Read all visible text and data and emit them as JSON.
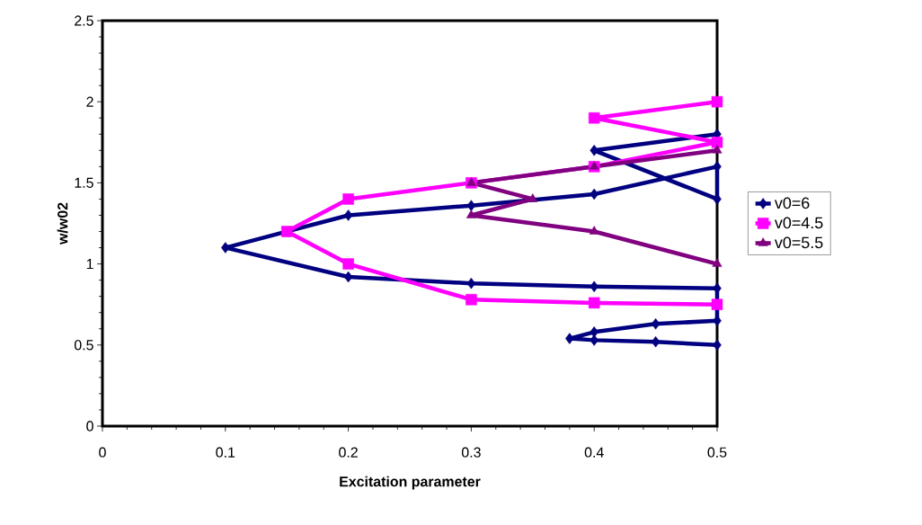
{
  "chart_data": {
    "type": "line",
    "xlabel": "Excitation parameter",
    "ylabel": "w/w02",
    "xlim": [
      0,
      0.5
    ],
    "ylim": [
      0,
      2.5
    ],
    "xticks": [
      0,
      0.1,
      0.2,
      0.3,
      0.4,
      0.5
    ],
    "yticks": [
      0,
      0.5,
      1,
      1.5,
      2,
      2.5
    ],
    "grid": false,
    "legend": "right",
    "series": [
      {
        "name": "v0=6",
        "color": "#000080",
        "marker": "diamond",
        "x": [
          0.5,
          0.4,
          0.5,
          0.5,
          0.4,
          0.3,
          0.2,
          0.1,
          0.2,
          0.3,
          0.4,
          0.5,
          0.5,
          0.45,
          0.4,
          0.38,
          0.4,
          0.45,
          0.5
        ],
        "values": [
          1.8,
          1.7,
          1.4,
          1.6,
          1.43,
          1.36,
          1.3,
          1.1,
          0.92,
          0.88,
          0.86,
          0.85,
          0.65,
          0.63,
          0.58,
          0.54,
          0.53,
          0.52,
          0.5
        ]
      },
      {
        "name": "v0=4.5",
        "color": "#ff00ff",
        "marker": "square",
        "x": [
          0.5,
          0.4,
          0.5,
          0.4,
          0.3,
          0.2,
          0.15,
          0.2,
          0.3,
          0.4,
          0.5
        ],
        "values": [
          2.0,
          1.9,
          1.75,
          1.6,
          1.5,
          1.4,
          1.2,
          1.0,
          0.78,
          0.76,
          0.75
        ]
      },
      {
        "name": "v0=5.5",
        "color": "#800080",
        "marker": "triangle",
        "x": [
          0.5,
          0.4,
          0.3,
          0.35,
          0.3,
          0.4,
          0.5
        ],
        "values": [
          1.7,
          1.6,
          1.5,
          1.4,
          1.3,
          1.2,
          1.0
        ]
      }
    ]
  }
}
